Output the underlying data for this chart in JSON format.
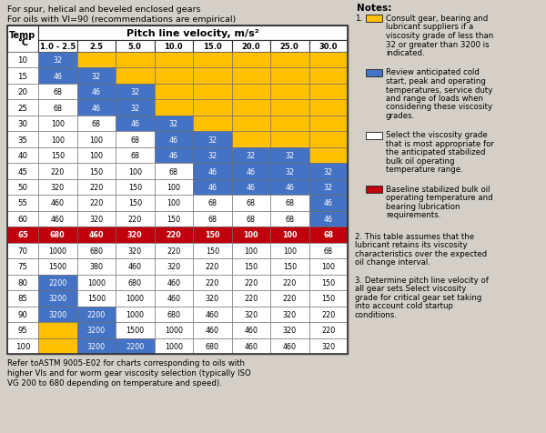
{
  "title_line1": "For spur, helical and beveled enclosed gears",
  "title_line2": "For oils with VI=90 (recommendations are empirical)",
  "footer": "Refer toASTM 9005-E02 for charts corresponding to oils with\nhigher VIs and for worm gear viscosity selection (typically ISO\nVG 200 to 680 depending on temperature and speed).",
  "col_header": "Pitch line velocity, m/s²",
  "col_labels": [
    "1.0 - 2.5",
    "2.5",
    "5.0",
    "10.0",
    "15.0",
    "20.0",
    "25.0",
    "30.0"
  ],
  "row_labels": [
    "10",
    "15",
    "20",
    "25",
    "30",
    "35",
    "40",
    "45",
    "50",
    "55",
    "60",
    "65",
    "70",
    "75",
    "80",
    "85",
    "90",
    "95",
    "100"
  ],
  "table_data": [
    [
      32,
      null,
      null,
      null,
      null,
      null,
      null,
      null
    ],
    [
      46,
      32,
      null,
      null,
      null,
      null,
      null,
      null
    ],
    [
      68,
      46,
      32,
      null,
      null,
      null,
      null,
      null
    ],
    [
      68,
      46,
      32,
      null,
      null,
      null,
      null,
      null
    ],
    [
      100,
      68,
      46,
      32,
      null,
      null,
      null,
      null
    ],
    [
      100,
      100,
      68,
      46,
      32,
      null,
      null,
      null
    ],
    [
      150,
      100,
      68,
      46,
      32,
      32,
      32,
      null
    ],
    [
      220,
      150,
      100,
      68,
      46,
      46,
      32,
      32
    ],
    [
      320,
      220,
      150,
      100,
      46,
      46,
      46,
      32
    ],
    [
      460,
      220,
      150,
      100,
      68,
      68,
      68,
      46
    ],
    [
      460,
      320,
      220,
      150,
      68,
      68,
      68,
      46
    ],
    [
      680,
      460,
      320,
      220,
      150,
      100,
      100,
      68
    ],
    [
      1000,
      680,
      320,
      220,
      150,
      100,
      100,
      68
    ],
    [
      1500,
      380,
      460,
      320,
      220,
      150,
      150,
      100
    ],
    [
      2200,
      1000,
      680,
      460,
      220,
      220,
      220,
      150
    ],
    [
      3200,
      1500,
      1000,
      460,
      320,
      220,
      220,
      150
    ],
    [
      3200,
      2200,
      1000,
      680,
      460,
      320,
      320,
      220
    ],
    [
      null,
      3200,
      1500,
      1000,
      460,
      460,
      320,
      220
    ],
    [
      null,
      3200,
      2200,
      1000,
      680,
      460,
      460,
      320
    ]
  ],
  "cell_colors": [
    [
      "blue",
      "yellow",
      "yellow",
      "yellow",
      "yellow",
      "yellow",
      "yellow",
      "yellow"
    ],
    [
      "blue",
      "blue",
      "yellow",
      "yellow",
      "yellow",
      "yellow",
      "yellow",
      "yellow"
    ],
    [
      "white",
      "blue",
      "blue",
      "yellow",
      "yellow",
      "yellow",
      "yellow",
      "yellow"
    ],
    [
      "white",
      "blue",
      "blue",
      "yellow",
      "yellow",
      "yellow",
      "yellow",
      "yellow"
    ],
    [
      "white",
      "white",
      "blue",
      "blue",
      "yellow",
      "yellow",
      "yellow",
      "yellow"
    ],
    [
      "white",
      "white",
      "white",
      "blue",
      "blue",
      "yellow",
      "yellow",
      "yellow"
    ],
    [
      "white",
      "white",
      "white",
      "blue",
      "blue",
      "blue",
      "blue",
      "yellow"
    ],
    [
      "white",
      "white",
      "white",
      "white",
      "blue",
      "blue",
      "blue",
      "blue"
    ],
    [
      "white",
      "white",
      "white",
      "white",
      "blue",
      "blue",
      "blue",
      "blue"
    ],
    [
      "white",
      "white",
      "white",
      "white",
      "white",
      "white",
      "white",
      "blue"
    ],
    [
      "white",
      "white",
      "white",
      "white",
      "white",
      "white",
      "white",
      "blue"
    ],
    [
      "red",
      "red",
      "red",
      "red",
      "red",
      "red",
      "red",
      "red"
    ],
    [
      "white",
      "white",
      "white",
      "white",
      "white",
      "white",
      "white",
      "white"
    ],
    [
      "white",
      "white",
      "white",
      "white",
      "white",
      "white",
      "white",
      "white"
    ],
    [
      "blue",
      "white",
      "white",
      "white",
      "white",
      "white",
      "white",
      "white"
    ],
    [
      "blue",
      "white",
      "white",
      "white",
      "white",
      "white",
      "white",
      "white"
    ],
    [
      "blue",
      "blue",
      "white",
      "white",
      "white",
      "white",
      "white",
      "white"
    ],
    [
      "yellow",
      "blue",
      "white",
      "white",
      "white",
      "white",
      "white",
      "white"
    ],
    [
      "yellow",
      "blue",
      "blue",
      "white",
      "white",
      "white",
      "white",
      "white"
    ]
  ],
  "color_map": {
    "blue": "#4472C4",
    "yellow": "#FFC000",
    "white": "#FFFFFF",
    "red": "#C0000C"
  },
  "notes_title": "Notes:",
  "notes": [
    {
      "color": "#FFC000",
      "num": "1.",
      "text": "Consult gear, bearing and lubricant suppliers if a viscosity grade of less than 32 or greater than 3200 is indicated."
    },
    {
      "color": "#4472C4",
      "num": "",
      "text": "Review anticipated cold start, peak and operating temperatures, service duty and range of loads when considering these viscosity grades."
    },
    {
      "color": "#FFFFFF",
      "num": "",
      "text": "Select the viscosity grade that is most appropriate for the anticipated stabilized bulk oil operating temperature range."
    },
    {
      "color": "#C0000C",
      "num": "",
      "text": "Baseline stabilized bulk oil operating temperature and bearing lubrication requirements."
    }
  ],
  "note2": "2. This table assumes that the lubricant retains its viscosity characteristics over the expected oil change interval.",
  "note3": "3. Determine pitch line velocity of all gear sets.Select viscosity grade for critical gear set taking into account cold startup conditions.",
  "bg_color": "#D4D0C8"
}
